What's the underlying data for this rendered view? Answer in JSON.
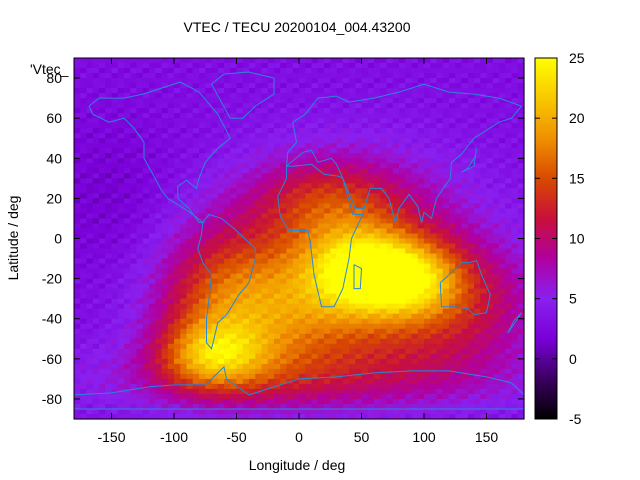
{
  "chart_data": {
    "type": "heatmap",
    "title": "VTEC / TECU 20200104_004.43200",
    "xlabel": "Longitude / deg",
    "ylabel": "Latitude / deg",
    "legend_key": "'Vtec_",
    "xlim": [
      -180,
      180
    ],
    "ylim": [
      -90,
      90
    ],
    "xticks": [
      -150,
      -100,
      -50,
      0,
      50,
      100,
      150
    ],
    "yticks": [
      -80,
      -60,
      -40,
      -20,
      0,
      20,
      40,
      60,
      80
    ],
    "colorbar": {
      "range": [
        -5,
        25
      ],
      "ticks": [
        -5,
        0,
        5,
        10,
        15,
        20,
        25
      ],
      "palette": [
        "#000000",
        "#3a0060",
        "#7a00d8",
        "#8a20f0",
        "#b000a0",
        "#c8103a",
        "#d84a00",
        "#f09000",
        "#f8c800",
        "#ffff00"
      ]
    },
    "grid_resolution_deg": [
      5,
      2.5
    ],
    "coastline_color": "#2a86d6",
    "tec_features": [
      {
        "name": "background",
        "value": 3
      },
      {
        "name": "equatorial_africa",
        "lon": 50,
        "lat": -15,
        "peak": 23
      },
      {
        "name": "indian_ocean",
        "lon": 90,
        "lat": -20,
        "peak": 22
      },
      {
        "name": "southern_south_america",
        "lon": -70,
        "lat": -58,
        "peak": 21
      },
      {
        "name": "south_atlantic",
        "lon": -20,
        "lat": -40,
        "peak": 16
      }
    ]
  }
}
